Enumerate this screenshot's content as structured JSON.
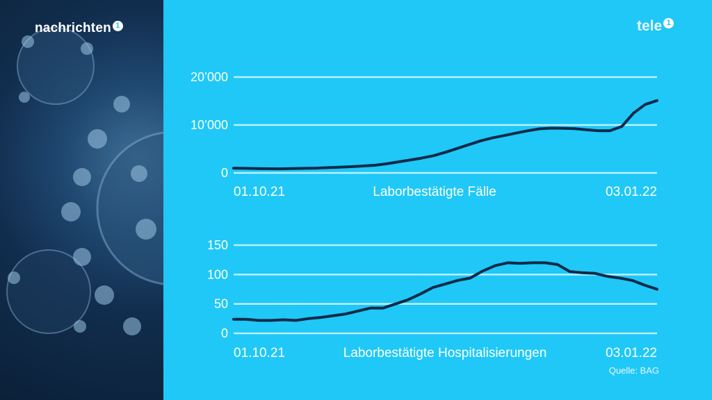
{
  "brand": {
    "left_logo": "nachrichten",
    "left_badge": "1",
    "right_logo": "tele",
    "right_badge": "1"
  },
  "colors": {
    "background": "#1fc8f7",
    "gridline": "#b9f1ff",
    "line": "#0d2a4a",
    "text": "#ffffff",
    "left_panel": "#112d4d"
  },
  "source": "Quelle: BAG",
  "chart_data": [
    {
      "type": "line",
      "title": "Laborbestätigte Fälle",
      "x_start_label": "01.10.21",
      "x_end_label": "03.01.22",
      "yticks": [
        "0",
        "10’000",
        "20’000"
      ],
      "ytick_values": [
        0,
        10000,
        20000
      ],
      "ylim": [
        0,
        20000
      ],
      "grid": true,
      "values": [
        1000,
        950,
        900,
        870,
        850,
        900,
        950,
        1000,
        1100,
        1200,
        1300,
        1450,
        1600,
        1900,
        2300,
        2700,
        3100,
        3600,
        4300,
        5100,
        5900,
        6700,
        7300,
        7800,
        8300,
        8800,
        9200,
        9350,
        9300,
        9250,
        9000,
        8800,
        8800,
        9700,
        12500,
        14300,
        15100
      ]
    },
    {
      "type": "line",
      "title": "Laborbestätigte Hospitalisierungen",
      "x_start_label": "01.10.21",
      "x_end_label": "03.01.22",
      "yticks": [
        "0",
        "50",
        "100",
        "150"
      ],
      "ytick_values": [
        0,
        50,
        100,
        150
      ],
      "ylim": [
        0,
        150
      ],
      "grid": true,
      "values": [
        24,
        24,
        22,
        22,
        23,
        22,
        25,
        27,
        30,
        33,
        38,
        43,
        43,
        50,
        57,
        67,
        78,
        84,
        90,
        94,
        106,
        115,
        120,
        119,
        120,
        120,
        117,
        105,
        103,
        102,
        97,
        94,
        90,
        82,
        75
      ]
    }
  ]
}
